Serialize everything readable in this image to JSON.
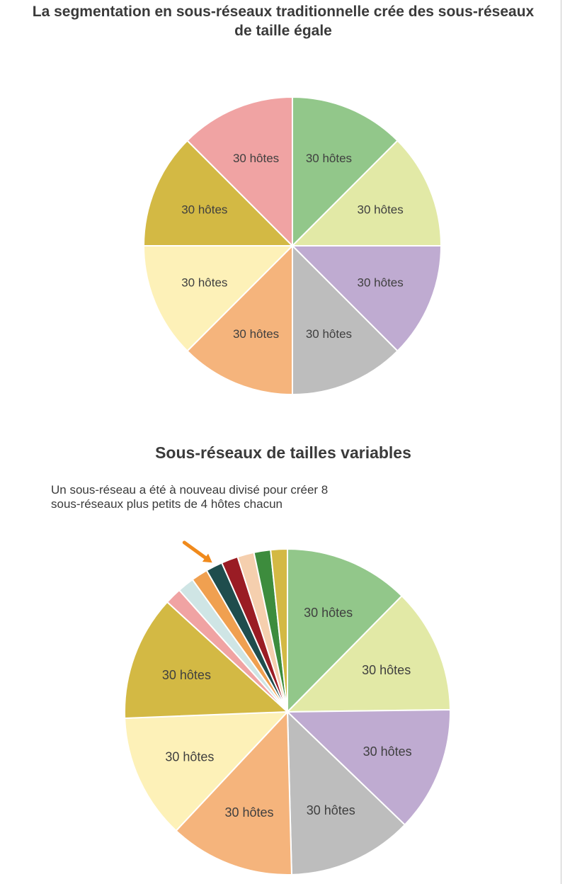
{
  "title_top": "La segmentation en sous-réseaux traditionnelle crée des sous-réseaux de taille égale",
  "title_bottom": "Sous-réseaux de tailles variables",
  "annotation": "Un sous-réseau a été à nouveau divisé pour créer 8 sous-réseaux plus petits de 4 hôtes chacun",
  "colors": {
    "arrow": "#f08a1c",
    "stroke": "#ffffff",
    "text": "#3f3f3f"
  },
  "chart_data": [
    {
      "type": "pie",
      "title": "La segmentation en sous-réseaux traditionnelle crée des sous-réseaux de taille égale",
      "slices": [
        {
          "label": "30 hôtes",
          "value": 30,
          "color": "#92c78a"
        },
        {
          "label": "30 hôtes",
          "value": 30,
          "color": "#e2e9a6"
        },
        {
          "label": "30 hôtes",
          "value": 30,
          "color": "#bfabd1"
        },
        {
          "label": "30 hôtes",
          "value": 30,
          "color": "#bdbdbd"
        },
        {
          "label": "30 hôtes",
          "value": 30,
          "color": "#f5b47c"
        },
        {
          "label": "30 hôtes",
          "value": 30,
          "color": "#fdf1b8"
        },
        {
          "label": "30 hôtes",
          "value": 30,
          "color": "#d3b944"
        },
        {
          "label": "30 hôtes",
          "value": 30,
          "color": "#f0a3a3"
        }
      ]
    },
    {
      "type": "pie",
      "title": "Sous-réseaux de tailles variables",
      "slices": [
        {
          "label": "30 hôtes",
          "value": 30,
          "color": "#92c78a"
        },
        {
          "label": "30 hôtes",
          "value": 30,
          "color": "#e2e9a6"
        },
        {
          "label": "30 hôtes",
          "value": 30,
          "color": "#bfabd1"
        },
        {
          "label": "30 hôtes",
          "value": 30,
          "color": "#bdbdbd"
        },
        {
          "label": "30 hôtes",
          "value": 30,
          "color": "#f5b47c"
        },
        {
          "label": "30 hôtes",
          "value": 30,
          "color": "#fdf1b8"
        },
        {
          "label": "30 hôtes",
          "value": 30,
          "color": "#d3b944"
        },
        {
          "label": "",
          "value": 4,
          "color": "#f0a3a3"
        },
        {
          "label": "",
          "value": 4,
          "color": "#cfe5e5"
        },
        {
          "label": "",
          "value": 4,
          "color": "#f0a050"
        },
        {
          "label": "",
          "value": 4,
          "color": "#1f4d4d"
        },
        {
          "label": "",
          "value": 4,
          "color": "#9a1c24"
        },
        {
          "label": "",
          "value": 4,
          "color": "#f5cfae"
        },
        {
          "label": "",
          "value": 4,
          "color": "#3d8c3d"
        },
        {
          "label": "",
          "value": 4,
          "color": "#d3b944"
        }
      ],
      "highlighted_slice": 10
    }
  ]
}
